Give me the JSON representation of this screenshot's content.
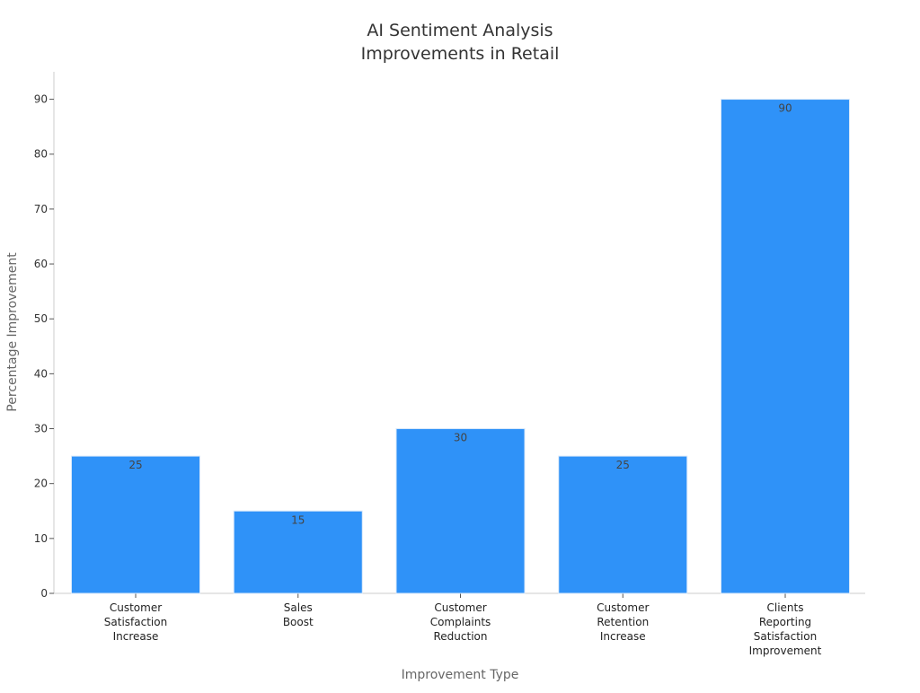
{
  "chart_data": {
    "type": "bar",
    "title": "AI Sentiment Analysis Improvements in Retail",
    "title_lines": [
      "AI Sentiment Analysis",
      "Improvements in Retail"
    ],
    "xlabel": "Improvement Type",
    "ylabel": "Percentage Improvement",
    "categories": [
      "Customer Satisfaction Increase",
      "Sales Boost",
      "Customer Complaints Reduction",
      "Customer Retention Increase",
      "Clients Reporting Satisfaction Improvement"
    ],
    "category_lines": [
      [
        "Customer",
        "Satisfaction",
        "Increase"
      ],
      [
        "Sales",
        "Boost"
      ],
      [
        "Customer",
        "Complaints",
        "Reduction"
      ],
      [
        "Customer",
        "Retention",
        "Increase"
      ],
      [
        "Clients",
        "Reporting",
        "Satisfaction",
        "Improvement"
      ]
    ],
    "values": [
      25,
      15,
      30,
      25,
      90
    ],
    "data_labels": [
      "25",
      "15",
      "30",
      "25",
      "90"
    ],
    "ylim": [
      0,
      95
    ],
    "yticks": [
      0,
      10,
      20,
      30,
      40,
      50,
      60,
      70,
      80,
      90
    ],
    "grid": false,
    "legend": "none",
    "bar_color": "#2f92f8"
  }
}
